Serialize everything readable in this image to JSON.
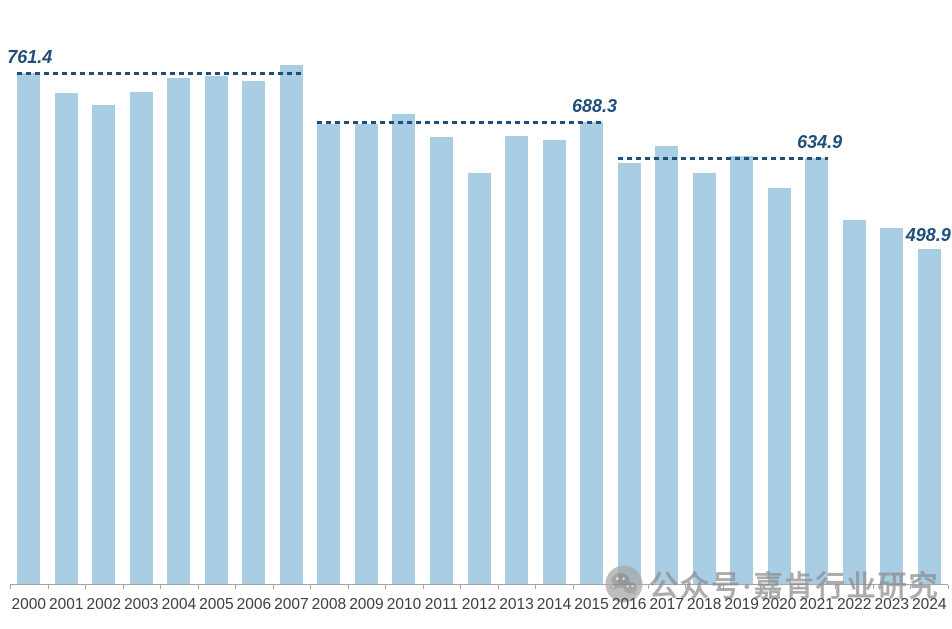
{
  "chart_data": {
    "type": "bar",
    "title": "",
    "xlabel": "",
    "ylabel": "",
    "categories": [
      "2000",
      "2001",
      "2002",
      "2003",
      "2004",
      "2005",
      "2006",
      "2007",
      "2008",
      "2009",
      "2010",
      "2011",
      "2012",
      "2013",
      "2014",
      "2015",
      "2016",
      "2017",
      "2018",
      "2019",
      "2020",
      "2021",
      "2022",
      "2023",
      "2024"
    ],
    "values": [
      761.4,
      732,
      713,
      733,
      754,
      757,
      749,
      774,
      686,
      686,
      700,
      666,
      612,
      668,
      662,
      688.3,
      627,
      652,
      612,
      638,
      590,
      634.9,
      542,
      530,
      498.9
    ],
    "ylim": [
      0,
      790
    ],
    "grid": false,
    "legend": false,
    "bar_color": "#A9CDE2",
    "line_color": "#1F4E79",
    "axis_color": "#a6a6a6",
    "reference_lines": [
      {
        "value": 761.4,
        "label": "761.4",
        "from_index": 0,
        "to_index": 7,
        "label_side": "left"
      },
      {
        "value": 688.3,
        "label": "688.3",
        "from_index": 8,
        "to_index": 15,
        "label_side": "right"
      },
      {
        "value": 634.9,
        "label": "634.9",
        "from_index": 16,
        "to_index": 21,
        "label_side": "right"
      }
    ],
    "point_labels": [
      {
        "index": 24,
        "label": "498.9"
      }
    ]
  },
  "watermark": {
    "text": "公众号·嘉肯行业研究",
    "icon": "wechat-icon"
  }
}
